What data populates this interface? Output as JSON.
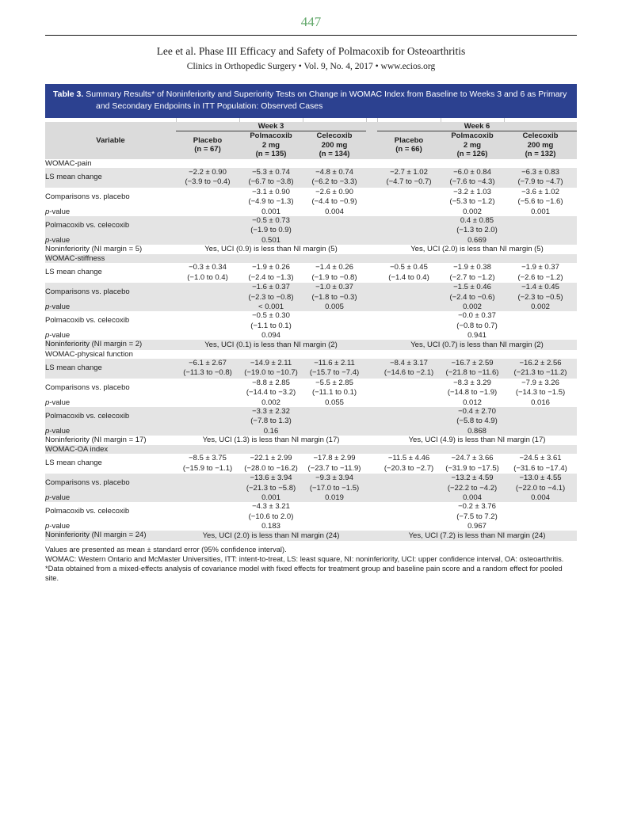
{
  "header": {
    "page_number": "447",
    "article_title": "Lee et al. Phase III Efficacy and Safety of Polmacoxib for Osteoarthritis",
    "journal_line": "Clinics in Orthopedic Surgery • Vol. 9, No. 4, 2017 • www.ecios.org"
  },
  "colors": {
    "title_bar_blue": "#2c4190",
    "header_row_gray": "#dbdbdb",
    "stripe_gray": "#e4e4e4",
    "page_number_green": "#63a86b"
  },
  "table": {
    "title_label": "Table 3.",
    "title_text": "Summary Results* of Noninferiority and Superiority Tests on Change in WOMAC Index from Baseline to Weeks 3 and 6 as Primary and Secondary Endpoints in ITT Population: Observed Cases",
    "p_label": {
      "italic": "p",
      "rest": "-value"
    },
    "header": {
      "variable_label": "Variable",
      "groups": [
        {
          "label": "Week 3",
          "columns": [
            [
              "Placebo",
              "(n = 67)"
            ],
            [
              "Polmacoxib",
              "2 mg",
              "(n = 135)"
            ],
            [
              "Celecoxib",
              "200 mg",
              "(n = 134)"
            ]
          ]
        },
        {
          "label": "Week 6",
          "columns": [
            [
              "Placebo",
              "(n = 66)"
            ],
            [
              "Polmacoxib",
              "2 mg",
              "(n = 126)"
            ],
            [
              "Celecoxib",
              "200 mg",
              "(n = 132)"
            ]
          ]
        }
      ]
    },
    "sections": [
      {
        "name": "WOMAC-pain",
        "ls_label": "LS mean change",
        "ls": [
          {
            "v": "−2.2 ± 0.90",
            "ci": "(−3.9 to −0.4)"
          },
          {
            "v": "−5.3 ± 0.74",
            "ci": "(−6.7 to −3.8)"
          },
          {
            "v": "−4.8 ± 0.74",
            "ci": "(−6.2 to −3.3)"
          },
          {
            "v": "−2.7 ± 1.02",
            "ci": "(−4.7 to −0.7)"
          },
          {
            "v": "−6.0 ± 0.84",
            "ci": "(−7.6 to −4.3)"
          },
          {
            "v": "−6.3 ± 0.83",
            "ci": "(−7.9 to −4.7)"
          }
        ],
        "comp_label": "Comparisons vs. placebo",
        "comp": [
          null,
          {
            "v": "−3.1 ± 0.90",
            "ci": "(−4.9 to −1.3)"
          },
          {
            "v": "−2.6 ± 0.90",
            "ci": "(−4.4 to −0.9)"
          },
          null,
          {
            "v": "−3.2 ± 1.03",
            "ci": "(−5.3 to −1.2)"
          },
          {
            "v": "−3.6 ± 1.02",
            "ci": "(−5.6 to −1.6)"
          }
        ],
        "p_comp": [
          null,
          "0.001",
          "0.004",
          null,
          "0.002",
          "0.001"
        ],
        "pvc_label": "Polmacoxib vs. celecoxib",
        "pvc": [
          {
            "v": "−0.5 ± 0.73",
            "ci": "(−1.9 to 0.9)"
          },
          {
            "v": "0.4 ± 0.85",
            "ci": "(−1.3 to 2.0)"
          }
        ],
        "p_pvc": [
          "0.501",
          "0.669"
        ],
        "ni_label": "Noninferiority (NI margin = 5)",
        "ni": [
          "Yes, UCI (0.9) is less than NI margin (5)",
          "Yes, UCI (2.0) is less than NI margin (5)"
        ]
      },
      {
        "name": "WOMAC-stiffness",
        "ls_label": "LS mean change",
        "ls": [
          {
            "v": "−0.3 ± 0.34",
            "ci": "(−1.0 to 0.4)"
          },
          {
            "v": "−1.9 ± 0.26",
            "ci": "(−2.4 to −1.3)"
          },
          {
            "v": "−1.4 ± 0.26",
            "ci": "(−1.9 to −0.8)"
          },
          {
            "v": "−0.5 ± 0.45",
            "ci": "(−1.4 to 0.4)"
          },
          {
            "v": "−1.9 ± 0.38",
            "ci": "(−2.7 to −1.2)"
          },
          {
            "v": "−1.9 ± 0.37",
            "ci": "(−2.6 to −1.2)"
          }
        ],
        "comp_label": "Comparisons vs. placebo",
        "comp": [
          null,
          {
            "v": "−1.6 ± 0.37",
            "ci": "(−2.3 to −0.8)"
          },
          {
            "v": "−1.0 ± 0.37",
            "ci": "(−1.8 to −0.3)"
          },
          null,
          {
            "v": "−1.5 ± 0.46",
            "ci": "(−2.4 to −0.6)"
          },
          {
            "v": "−1.4 ± 0.45",
            "ci": "(−2.3 to −0.5)"
          }
        ],
        "p_comp": [
          null,
          "< 0.001",
          "0.005",
          null,
          "0.002",
          "0.002"
        ],
        "pvc_label": "Polmacoxib vs. celecoxib",
        "pvc": [
          {
            "v": "−0.5 ± 0.30",
            "ci": "(−1.1 to 0.1)"
          },
          {
            "v": "−0.0 ± 0.37",
            "ci": "(−0.8 to 0.7)"
          }
        ],
        "p_pvc": [
          "0.094",
          "0.941"
        ],
        "ni_label": "Noninferiority (NI margin = 2)",
        "ni": [
          "Yes, UCI (0.1) is less than NI margin (2)",
          "Yes, UCI (0.7) is less than NI margin (2)"
        ]
      },
      {
        "name": "WOMAC-physical function",
        "ls_label": "LS mean change",
        "ls": [
          {
            "v": "−6.1 ± 2.67",
            "ci": "(−11.3 to −0.8)"
          },
          {
            "v": "−14.9 ± 2.11",
            "ci": "(−19.0 to −10.7)"
          },
          {
            "v": "−11.6 ± 2.11",
            "ci": "(−15.7 to −7.4)"
          },
          {
            "v": "−8.4 ± 3.17",
            "ci": "(−14.6 to −2.1)"
          },
          {
            "v": "−16.7 ± 2.59",
            "ci": "(−21.8 to −11.6)"
          },
          {
            "v": "−16.2 ± 2.56",
            "ci": "(−21.3 to −11.2)"
          }
        ],
        "comp_label": "Comparisons vs. placebo",
        "comp": [
          null,
          {
            "v": "−8.8 ± 2.85",
            "ci": "(−14.4 to −3.2)"
          },
          {
            "v": "−5.5 ± 2.85",
            "ci": "(−11.1 to 0.1)"
          },
          null,
          {
            "v": "−8.3 ± 3.29",
            "ci": "(−14.8 to −1.9)"
          },
          {
            "v": "−7.9 ± 3.26",
            "ci": "(−14.3 to −1.5)"
          }
        ],
        "p_comp": [
          null,
          "0.002",
          "0.055",
          null,
          "0.012",
          "0.016"
        ],
        "pvc_label": "Polmacoxib vs. celecoxib",
        "pvc": [
          {
            "v": "−3.3 ± 2.32",
            "ci": "(−7.8 to 1.3)"
          },
          {
            "v": "−0.4 ± 2.70",
            "ci": "(−5.8 to 4.9)"
          }
        ],
        "p_pvc": [
          "0.16",
          "0.868"
        ],
        "ni_label": "Noninferiority (NI margin = 17)",
        "ni": [
          "Yes, UCI (1.3) is less than NI margin (17)",
          "Yes, UCI (4.9) is less than NI margin (17)"
        ]
      },
      {
        "name": "WOMAC-OA index",
        "ls_label": "LS mean change",
        "ls": [
          {
            "v": "−8.5 ± 3.75",
            "ci": "(−15.9 to −1.1)"
          },
          {
            "v": "−22.1 ± 2.99",
            "ci": "(−28.0 to −16.2)"
          },
          {
            "v": "−17.8 ± 2.99",
            "ci": "(−23.7 to −11.9)"
          },
          {
            "v": "−11.5 ± 4.46",
            "ci": "(−20.3 to −2.7)"
          },
          {
            "v": "−24.7 ± 3.66",
            "ci": "(−31.9 to −17.5)"
          },
          {
            "v": "−24.5 ± 3.61",
            "ci": "(−31.6 to −17.4)"
          }
        ],
        "comp_label": "Comparisons vs. placebo",
        "comp": [
          null,
          {
            "v": "−13.6 ± 3.94",
            "ci": "(−21.3 to −5.8)"
          },
          {
            "v": "−9.3 ± 3.94",
            "ci": "(−17.0 to −1.5)"
          },
          null,
          {
            "v": "−13.2 ± 4.59",
            "ci": "(−22.2 to −4.2)"
          },
          {
            "v": "−13.0 ± 4.55",
            "ci": "(−22.0 to −4.1)"
          }
        ],
        "p_comp": [
          null,
          "0.001",
          "0.019",
          null,
          "0.004",
          "0.004"
        ],
        "pvc_label": "Polmacoxib vs. celecoxib",
        "pvc": [
          {
            "v": "−4.3 ± 3.21",
            "ci": "(−10.6 to 2.0)"
          },
          {
            "v": "−0.2 ± 3.76",
            "ci": "(−7.5 to 7.2)"
          }
        ],
        "p_pvc": [
          "0.183",
          "0.967"
        ],
        "ni_label": "Noninferiority (NI margin = 24)",
        "ni": [
          "Yes, UCI (2.0) is less than NI margin (24)",
          "Yes, UCI (7.2) is less than NI margin (24)"
        ]
      }
    ]
  },
  "footnotes": [
    "Values are presented as mean ± standard error (95% confidence interval).",
    "WOMAC: Western Ontario and McMaster Universities, ITT: intent-to-treat, LS: least square, NI: noninferiority, UCI: upper confidence interval, OA: osteoarthritis.",
    "*Data obtained from a mixed-effects analysis of covariance model with fixed effects for treatment group and baseline pain score and a random effect for pooled site."
  ]
}
